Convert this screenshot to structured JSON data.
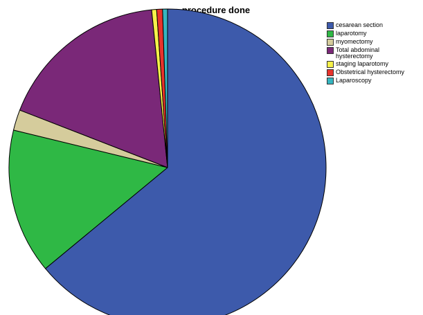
{
  "chart_data": {
    "type": "pie",
    "title": "procedure done",
    "legend_position": "top-right",
    "slices": [
      {
        "label": "cesarean section",
        "value": 64.0,
        "color": "#3d5aab"
      },
      {
        "label": "laparotomy",
        "value": 14.8,
        "color": "#2fb845"
      },
      {
        "label": "myomectomy",
        "value": 2.1,
        "color": "#d5cc9c"
      },
      {
        "label": "Total abdominal\nhysterectomy",
        "value": 17.5,
        "color": "#7a2878"
      },
      {
        "label": "staging laparotomy",
        "value": 0.5,
        "color": "#f7f24a"
      },
      {
        "label": "Obstetrical hysterectomy",
        "value": 0.6,
        "color": "#e8332c"
      },
      {
        "label": "Laparoscopy",
        "value": 0.5,
        "color": "#35b5c0"
      }
    ]
  }
}
